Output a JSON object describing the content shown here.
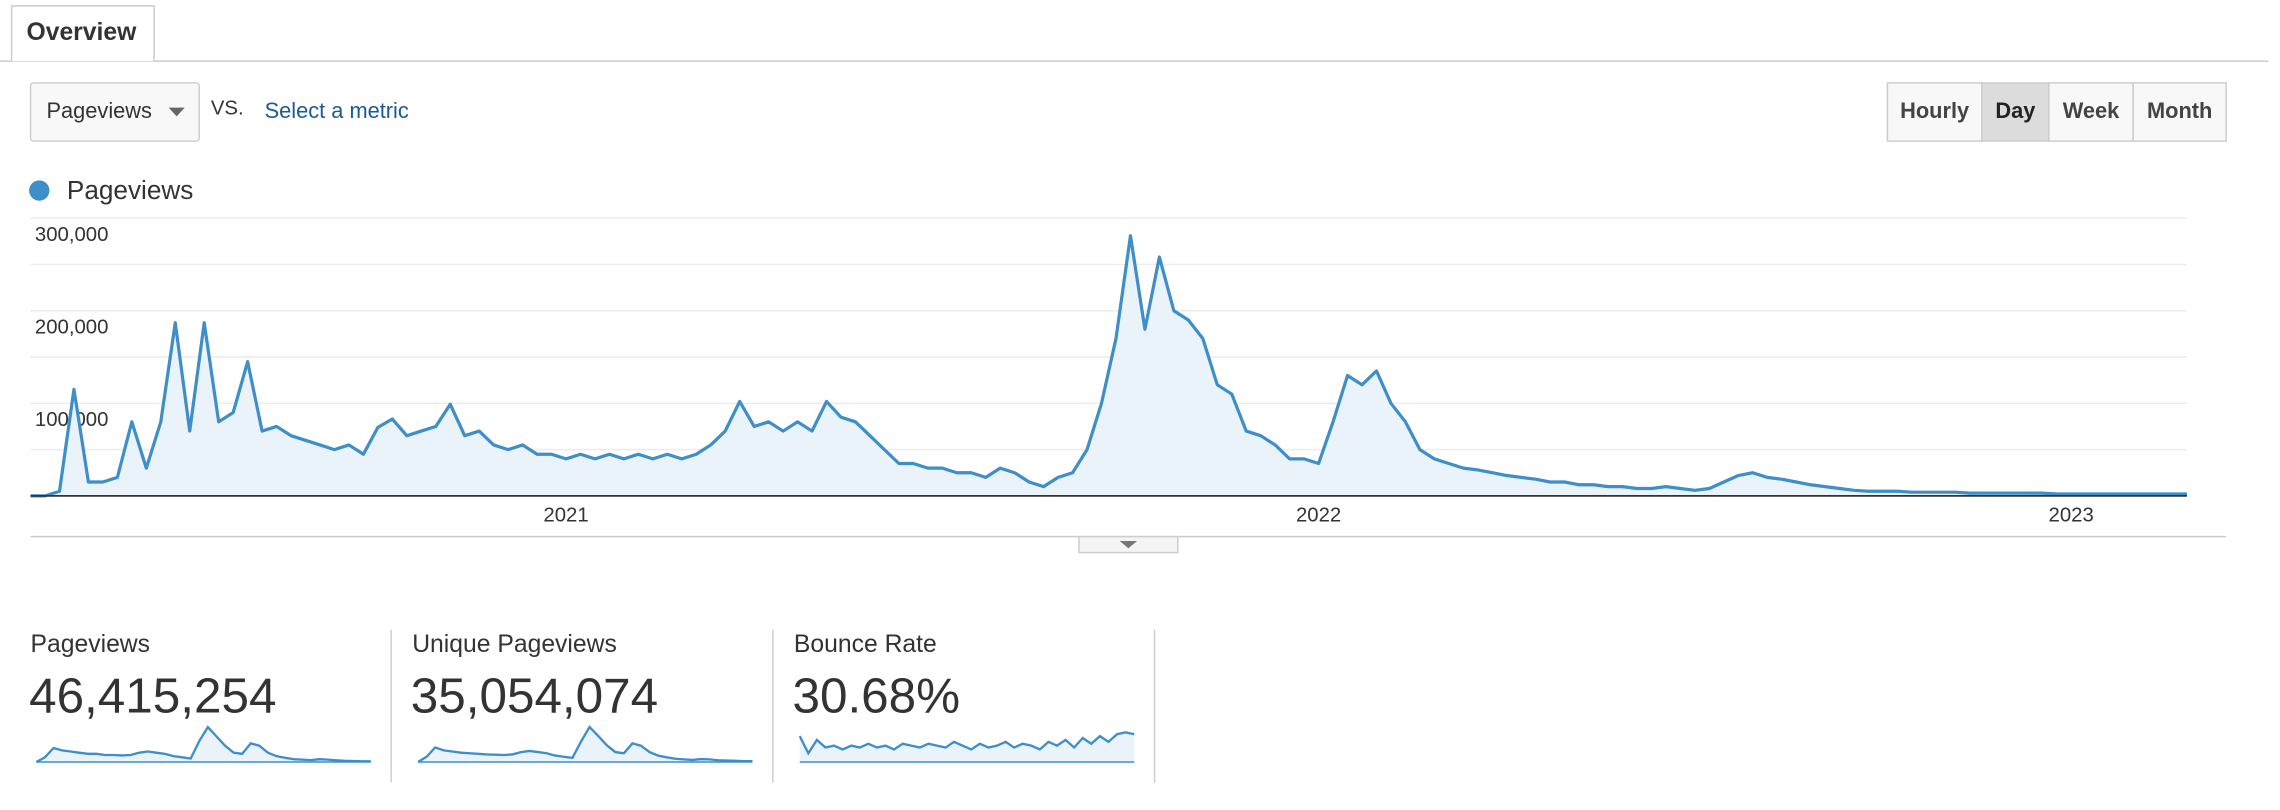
{
  "tab": "Overview",
  "metric_selector": "Pageviews",
  "vs_label": "VS.",
  "compare_link": "Select a metric",
  "granularity": {
    "options": [
      "Hourly",
      "Day",
      "Week",
      "Month"
    ],
    "selected": 1
  },
  "chart_data": {
    "type": "line",
    "categories": [
      null,
      null,
      null,
      null,
      null,
      null,
      null,
      null,
      null,
      null,
      null,
      null,
      null,
      null,
      null,
      null,
      null,
      null,
      null,
      null,
      null,
      null,
      null,
      null,
      null,
      null,
      null,
      null,
      null,
      null,
      null,
      null,
      null,
      null,
      null,
      null,
      null,
      "2021",
      null,
      null,
      null,
      null,
      null,
      null,
      null,
      null,
      null,
      null,
      null,
      null,
      null,
      null,
      null,
      null,
      null,
      null,
      null,
      null,
      null,
      null,
      null,
      null,
      null,
      null,
      null,
      null,
      null,
      null,
      null,
      null,
      null,
      null,
      null,
      null,
      null,
      null,
      null,
      null,
      null,
      null,
      null,
      null,
      null,
      null,
      null,
      null,
      null,
      null,
      null,
      "2022",
      null,
      null,
      null,
      null,
      null,
      null,
      null,
      null,
      null,
      null,
      null,
      null,
      null,
      null,
      null,
      null,
      null,
      null,
      null,
      null,
      null,
      null,
      null,
      null,
      null,
      null,
      null,
      null,
      null,
      null,
      null,
      null,
      null,
      null,
      null,
      null,
      null,
      null,
      null,
      null,
      null,
      null,
      null,
      null,
      null,
      null,
      null,
      null,
      null,
      null,
      null,
      "2023",
      null,
      null,
      null,
      null,
      null,
      null,
      null,
      null
    ],
    "series": [
      {
        "name": "Pageviews",
        "color": "#3d8ec9",
        "fill": "#eaf2fa",
        "values": [
          0,
          0,
          5000,
          115000,
          15000,
          15000,
          20000,
          80000,
          30000,
          80000,
          187000,
          70000,
          187000,
          80000,
          90000,
          145000,
          70000,
          75000,
          65000,
          60000,
          55000,
          50000,
          55000,
          45000,
          74000,
          83000,
          65000,
          70000,
          75000,
          99000,
          65000,
          70000,
          55000,
          50000,
          55000,
          45000,
          45000,
          40000,
          45000,
          40000,
          45000,
          40000,
          45000,
          40000,
          45000,
          40000,
          45000,
          55000,
          70000,
          102000,
          75000,
          80000,
          70000,
          80000,
          70000,
          102000,
          85000,
          80000,
          65000,
          50000,
          35000,
          35000,
          30000,
          30000,
          25000,
          25000,
          20000,
          30000,
          25000,
          15000,
          10000,
          20000,
          25000,
          50000,
          100000,
          170000,
          281000,
          180000,
          258000,
          200000,
          190000,
          170000,
          120000,
          110000,
          70000,
          65000,
          55000,
          40000,
          40000,
          35000,
          80000,
          130000,
          120000,
          135000,
          100000,
          80000,
          50000,
          40000,
          35000,
          30000,
          28000,
          25000,
          22000,
          20000,
          18000,
          15000,
          15000,
          12000,
          12000,
          10000,
          10000,
          8000,
          8000,
          10000,
          8000,
          6000,
          8000,
          15000,
          22000,
          25000,
          20000,
          18000,
          15000,
          12000,
          10000,
          8000,
          6000,
          5000,
          5000,
          5000,
          4000,
          4000,
          4000,
          4000,
          3000,
          3000,
          3000,
          3000,
          3000,
          3000,
          2000,
          2000,
          2000,
          2000,
          2000,
          2000,
          2000,
          2000,
          2000,
          2000
        ]
      }
    ],
    "ylim": [
      0,
      300000
    ],
    "yticks": [
      {
        "value": 100000,
        "label": "100,000"
      },
      {
        "value": 200000,
        "label": "200,000"
      },
      {
        "value": 300000,
        "label": "300,000"
      }
    ],
    "grid_lines": [
      0,
      50000,
      100000,
      150000,
      200000,
      250000,
      300000
    ],
    "area": true
  },
  "metrics": [
    {
      "label": "Pageviews",
      "value": "46,415,254",
      "baseline_zero": true,
      "sparkline": [
        0,
        20,
        60,
        50,
        45,
        40,
        35,
        35,
        30,
        30,
        28,
        30,
        40,
        45,
        40,
        35,
        25,
        20,
        15,
        90,
        150,
        110,
        70,
        40,
        35,
        80,
        70,
        40,
        25,
        18,
        12,
        10,
        8,
        12,
        10,
        7,
        5,
        4,
        3,
        3
      ]
    },
    {
      "label": "Unique Pageviews",
      "value": "35,054,074",
      "baseline_zero": true,
      "sparkline": [
        0,
        18,
        50,
        40,
        36,
        32,
        30,
        28,
        26,
        25,
        24,
        26,
        34,
        38,
        34,
        30,
        22,
        18,
        14,
        70,
        120,
        90,
        58,
        34,
        30,
        64,
        56,
        34,
        22,
        16,
        11,
        9,
        7,
        10,
        9,
        6,
        5,
        4,
        3,
        3
      ]
    },
    {
      "label": "Bounce Rate",
      "value": "30.68%",
      "baseline_zero": false,
      "sparkline": [
        33,
        24,
        31,
        27,
        28,
        26,
        28,
        27,
        29,
        27,
        28,
        26,
        29,
        28,
        27,
        29,
        28,
        27,
        30,
        28,
        26,
        29,
        27,
        28,
        30,
        27,
        29,
        28,
        26,
        30,
        28,
        31,
        27,
        32,
        29,
        33,
        30,
        34,
        35,
        34
      ]
    }
  ]
}
